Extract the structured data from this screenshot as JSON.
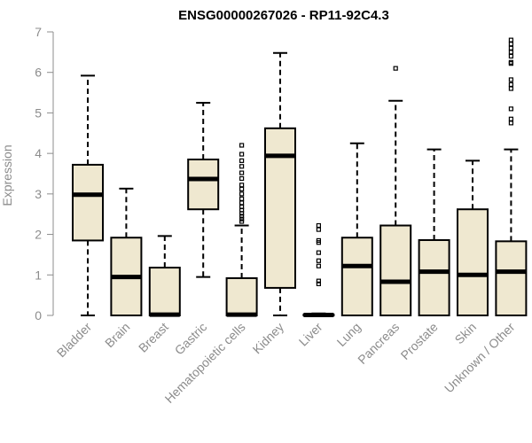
{
  "chart_data": {
    "type": "boxplot",
    "title": "ENSG00000267026 - RP11-92C4.3",
    "xlabel": "",
    "ylabel": "Expression",
    "ylim": [
      0,
      7
    ],
    "yticks": [
      0,
      1,
      2,
      3,
      4,
      5,
      6,
      7
    ],
    "box_fill": "#efe8d0",
    "categories": [
      "Bladder",
      "Brain",
      "Breast",
      "Gastric",
      "Hematopoietic cells",
      "Kidney",
      "Liver",
      "Lung",
      "Pancreas",
      "Prostate",
      "Skin",
      "Unknown / Other"
    ],
    "boxes": [
      {
        "name": "Bladder",
        "whisker_low": 0,
        "q1": 1.85,
        "median": 2.98,
        "q3": 3.72,
        "whisker_high": 5.92,
        "outliers": []
      },
      {
        "name": "Brain",
        "whisker_low": 0,
        "q1": 0,
        "median": 0.95,
        "q3": 1.92,
        "whisker_high": 3.13,
        "outliers": []
      },
      {
        "name": "Breast",
        "whisker_low": 0,
        "q1": 0,
        "median": 0.02,
        "q3": 1.18,
        "whisker_high": 1.96,
        "outliers": []
      },
      {
        "name": "Gastric",
        "whisker_low": 0.95,
        "q1": 2.62,
        "median": 3.37,
        "q3": 3.85,
        "whisker_high": 5.25,
        "outliers": []
      },
      {
        "name": "Hematopoietic cells",
        "whisker_low": 0,
        "q1": 0,
        "median": 0.02,
        "q3": 0.92,
        "whisker_high": 2.22,
        "outliers": [
          2.32,
          2.38,
          2.45,
          2.52,
          2.6,
          2.68,
          2.78,
          2.88,
          3.0,
          3.12,
          3.22,
          3.38,
          3.52,
          3.68,
          3.82,
          3.98,
          4.2
        ]
      },
      {
        "name": "Kidney",
        "whisker_low": 0,
        "q1": 0.68,
        "median": 3.94,
        "q3": 4.62,
        "whisker_high": 6.48,
        "outliers": []
      },
      {
        "name": "Liver",
        "whisker_low": 0,
        "q1": 0,
        "median": 0.01,
        "q3": 0.02,
        "whisker_high": 0.05,
        "outliers": [
          0.78,
          0.85,
          1.22,
          1.35,
          1.55,
          1.8,
          1.85,
          2.12,
          2.22
        ]
      },
      {
        "name": "Lung",
        "whisker_low": 0,
        "q1": 0,
        "median": 1.22,
        "q3": 1.92,
        "whisker_high": 4.25,
        "outliers": []
      },
      {
        "name": "Pancreas",
        "whisker_low": 0,
        "q1": 0,
        "median": 0.83,
        "q3": 2.22,
        "whisker_high": 5.3,
        "outliers": [
          6.1
        ]
      },
      {
        "name": "Prostate",
        "whisker_low": 0,
        "q1": 0,
        "median": 1.08,
        "q3": 1.86,
        "whisker_high": 4.1,
        "outliers": []
      },
      {
        "name": "Skin",
        "whisker_low": 0,
        "q1": 0,
        "median": 1.0,
        "q3": 2.62,
        "whisker_high": 3.82,
        "outliers": []
      },
      {
        "name": "Unknown / Other",
        "whisker_low": 0,
        "q1": 0,
        "median": 1.08,
        "q3": 1.83,
        "whisker_high": 4.1,
        "outliers": [
          4.75,
          4.85,
          5.1,
          5.6,
          5.7,
          5.82,
          6.22,
          6.25,
          6.4,
          6.5,
          6.6,
          6.7,
          6.8
        ]
      }
    ]
  }
}
